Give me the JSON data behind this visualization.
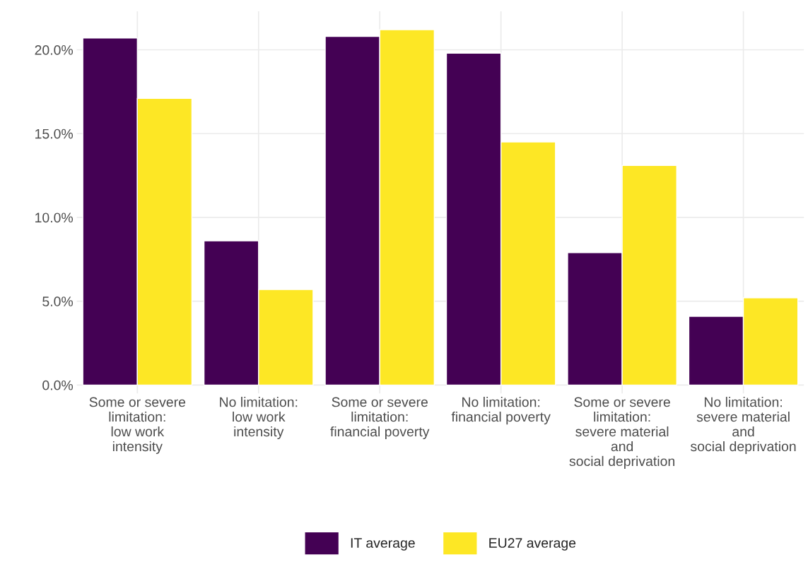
{
  "chart_data": {
    "type": "bar",
    "categories": [
      "Some or severe\nlimitation:\nlow work\nintensity",
      "No limitation:\nlow work\nintensity",
      "Some or severe\nlimitation:\nfinancial poverty",
      "No limitation:\nfinancial poverty",
      "Some or severe\nlimitation:\nsevere material\nand\nsocial deprivation",
      "No limitation:\nsevere material\nand\nsocial deprivation"
    ],
    "series": [
      {
        "name": "IT average",
        "color": "#440154",
        "values": [
          20.7,
          8.6,
          20.8,
          19.8,
          7.9,
          4.1
        ]
      },
      {
        "name": "EU27 average",
        "color": "#fde725",
        "values": [
          17.1,
          5.7,
          21.2,
          14.5,
          13.1,
          5.2
        ]
      }
    ],
    "ylim": [
      -0.5,
      22.3
    ],
    "yticks": [
      {
        "value": 0,
        "label": "0.0%"
      },
      {
        "value": 5,
        "label": "5.0%"
      },
      {
        "value": 10,
        "label": "10.0%"
      },
      {
        "value": 15,
        "label": "15.0%"
      },
      {
        "value": 20,
        "label": "20.0%"
      }
    ],
    "grid": true,
    "legend": "bottom"
  }
}
